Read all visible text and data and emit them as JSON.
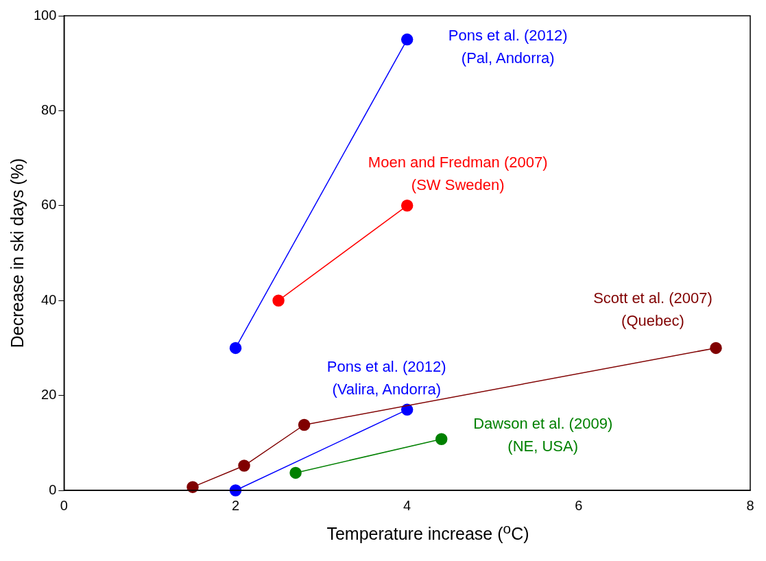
{
  "chart_data": {
    "type": "line",
    "xlabel": "Temperature increase ($^{o}$C)",
    "ylabel": "Decrease in ski days (%)",
    "xlim": [
      0,
      8
    ],
    "xticks": [
      0,
      2,
      4,
      6,
      8
    ],
    "ylim": [
      0,
      100
    ],
    "yticks": [
      0,
      20,
      40,
      60,
      80,
      100
    ],
    "grid": false,
    "legend": false,
    "marker": "circle",
    "line_style": "solid",
    "series": [
      {
        "name": "Pons et al. (2012)\n(Pal, Andorra)",
        "color": "#0000ff",
        "x": [
          2,
          4
        ],
        "values": [
          30,
          95
        ]
      },
      {
        "name": "Moen and Fredman (2007)\n(SW Sweden)",
        "color": "#ff0000",
        "x": [
          2.5,
          4
        ],
        "values": [
          40,
          60
        ]
      },
      {
        "name": "Scott et al. (2007)\n(Quebec)",
        "color": "#800000",
        "x": [
          1.5,
          2.1,
          2.8,
          7.6
        ],
        "values": [
          0.7,
          5.2,
          13.8,
          30
        ]
      },
      {
        "name": "Pons et al. (2012)\n(Valira, Andorra)",
        "color": "#0000ff",
        "x": [
          2,
          4
        ],
        "values": [
          0,
          17
        ]
      },
      {
        "name": "Dawson et al. (2009)\n(NE, USA)",
        "color": "#008000",
        "x": [
          2.7,
          4.4
        ],
        "values": [
          3.7,
          10.8
        ]
      }
    ]
  }
}
